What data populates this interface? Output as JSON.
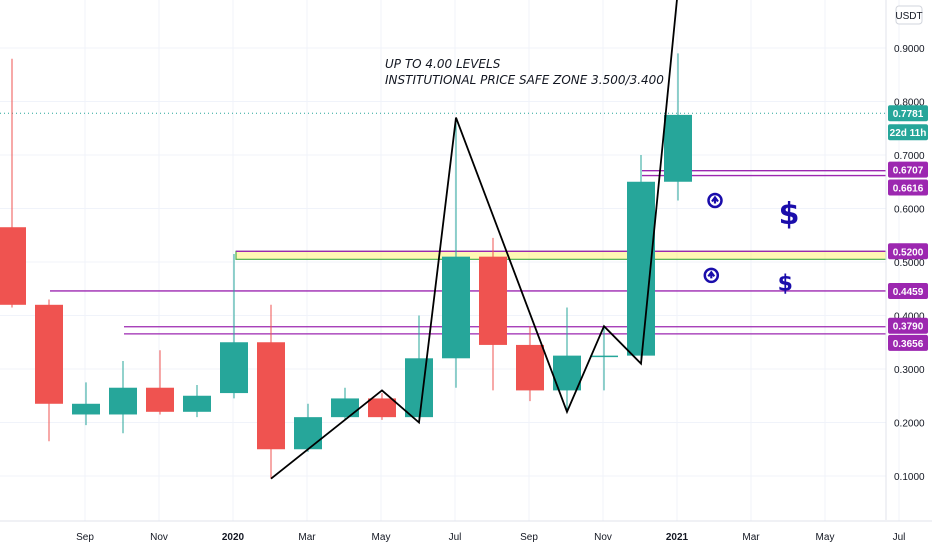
{
  "chart_data": {
    "type": "candlestick",
    "currency": "USDT",
    "timeframe_badge": "22d 11h",
    "last_price": "0.7781",
    "annotation_lines": [
      "UP TO 4.00 LEVELS",
      "INSTITUTIONAL PRICE SAFE ZONE 3.500/3.400"
    ],
    "y_ticks": [
      "0.1000",
      "0.2000",
      "0.3000",
      "0.4000",
      "0.5000",
      "0.6000",
      "0.7000",
      "0.8000",
      "0.9000"
    ],
    "x_ticks": [
      {
        "label": "Sep",
        "i": 1,
        "bold": false
      },
      {
        "label": "Nov",
        "i": 3,
        "bold": false
      },
      {
        "label": "2020",
        "i": 5,
        "bold": true
      },
      {
        "label": "Mar",
        "i": 7,
        "bold": false
      },
      {
        "label": "May",
        "i": 9,
        "bold": false
      },
      {
        "label": "Jul",
        "i": 11,
        "bold": false
      },
      {
        "label": "Sep",
        "i": 13,
        "bold": false
      },
      {
        "label": "Nov",
        "i": 15,
        "bold": false
      },
      {
        "label": "2021",
        "i": 17,
        "bold": true
      },
      {
        "label": "Mar",
        "i": 19,
        "bold": false
      },
      {
        "label": "May",
        "i": 21,
        "bold": false
      },
      {
        "label": "Jul",
        "i": 23,
        "bold": false
      }
    ],
    "candles": [
      {
        "open": 0.565,
        "high": 0.88,
        "low": 0.415,
        "close": 0.42
      },
      {
        "open": 0.42,
        "high": 0.43,
        "low": 0.165,
        "close": 0.235
      },
      {
        "open": 0.215,
        "high": 0.275,
        "low": 0.195,
        "close": 0.235
      },
      {
        "open": 0.215,
        "high": 0.315,
        "low": 0.18,
        "close": 0.265
      },
      {
        "open": 0.265,
        "high": 0.335,
        "low": 0.215,
        "close": 0.22
      },
      {
        "open": 0.22,
        "high": 0.27,
        "low": 0.21,
        "close": 0.25
      },
      {
        "open": 0.255,
        "high": 0.515,
        "low": 0.245,
        "close": 0.35
      },
      {
        "open": 0.35,
        "high": 0.42,
        "low": 0.095,
        "close": 0.15
      },
      {
        "open": 0.15,
        "high": 0.235,
        "low": 0.145,
        "close": 0.21
      },
      {
        "open": 0.21,
        "high": 0.265,
        "low": 0.205,
        "close": 0.245
      },
      {
        "open": 0.245,
        "high": 0.255,
        "low": 0.205,
        "close": 0.21
      },
      {
        "open": 0.21,
        "high": 0.4,
        "low": 0.205,
        "close": 0.32
      },
      {
        "open": 0.32,
        "high": 0.77,
        "low": 0.265,
        "close": 0.51
      },
      {
        "open": 0.51,
        "high": 0.545,
        "low": 0.26,
        "close": 0.345
      },
      {
        "open": 0.345,
        "high": 0.38,
        "low": 0.24,
        "close": 0.26
      },
      {
        "open": 0.26,
        "high": 0.415,
        "low": 0.22,
        "close": 0.325
      },
      {
        "open": 0.325,
        "high": 0.38,
        "low": 0.26,
        "close": 0.325
      },
      {
        "open": 0.325,
        "high": 0.7,
        "low": 0.315,
        "close": 0.65
      },
      {
        "open": 0.65,
        "high": 0.89,
        "low": 0.615,
        "close": 0.775
      }
    ],
    "levels": [
      {
        "value": "0.6707",
        "color": "#9c27b0"
      },
      {
        "value": "0.6616",
        "color": "#9c27b0"
      },
      {
        "value": "0.5200",
        "color": "#9c27b0"
      },
      {
        "value": "0.4459",
        "color": "#9c27b0"
      },
      {
        "value": "0.3790",
        "color": "#9c27b0"
      },
      {
        "value": "0.3656",
        "color": "#9c27b0"
      }
    ],
    "zone": {
      "low": 0.505,
      "high": 0.52
    },
    "trend_path": [
      {
        "i": 7,
        "v": 0.095
      },
      {
        "i": 10,
        "v": 0.26
      },
      {
        "i": 11,
        "v": 0.2
      },
      {
        "i": 12,
        "v": 0.77
      },
      {
        "i": 15,
        "v": 0.22
      },
      {
        "i": 16,
        "v": 0.38
      },
      {
        "i": 17,
        "v": 0.31
      },
      {
        "i": 18,
        "v": 1.01
      }
    ],
    "icons": [
      {
        "name": "arrow-up-circle-icon",
        "glyph": "⬆",
        "i": 19,
        "v": 0.615
      },
      {
        "name": "dollar-icon",
        "glyph": "$",
        "i": 21,
        "v": 0.59
      },
      {
        "name": "arrow-up-circle-icon",
        "glyph": "⬆",
        "i": 18.9,
        "v": 0.475
      },
      {
        "name": "dollar-icon",
        "glyph": "$",
        "i": 20.9,
        "v": 0.465
      }
    ],
    "colors": {
      "up": "#26a69a",
      "down": "#ef5350",
      "level": "#9c27b0",
      "zone_fill": "#ffee58",
      "zone_border": "#4caf50",
      "trend": "#000000",
      "icon": "#1a0dab",
      "last_price_bg": "#26a69a",
      "dotted": "#26a69a"
    }
  }
}
